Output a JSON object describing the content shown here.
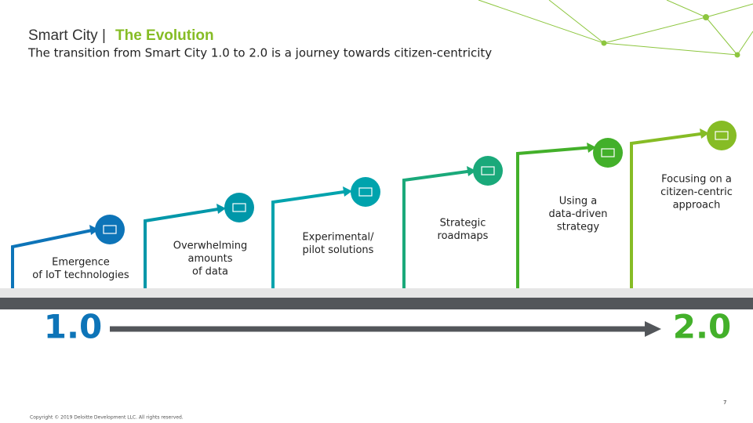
{
  "header": {
    "title_prefix": "Smart City |",
    "title_highlight": "The Evolution",
    "subtitle": "The transition from Smart City 1.0 to 2.0 is a journey towards citizen-centricity"
  },
  "steps": [
    {
      "label": [
        "Emergence",
        "of IoT technologies"
      ]
    },
    {
      "label": [
        "Overwhelming",
        "amounts",
        "of data"
      ]
    },
    {
      "label": [
        "Experimental/",
        "pilot solutions"
      ]
    },
    {
      "label": [
        "Strategic",
        "roadmaps"
      ]
    },
    {
      "label": [
        "Using a",
        "data-driven",
        "strategy"
      ]
    },
    {
      "label": [
        "Focusing on a",
        "citizen-centric",
        "approach"
      ]
    }
  ],
  "scale": {
    "start": "1.0",
    "end": "2.0"
  },
  "footer": {
    "copyright": "Copyright © 2019 Deloitte Development LLC. All rights reserved.",
    "page": "7"
  }
}
